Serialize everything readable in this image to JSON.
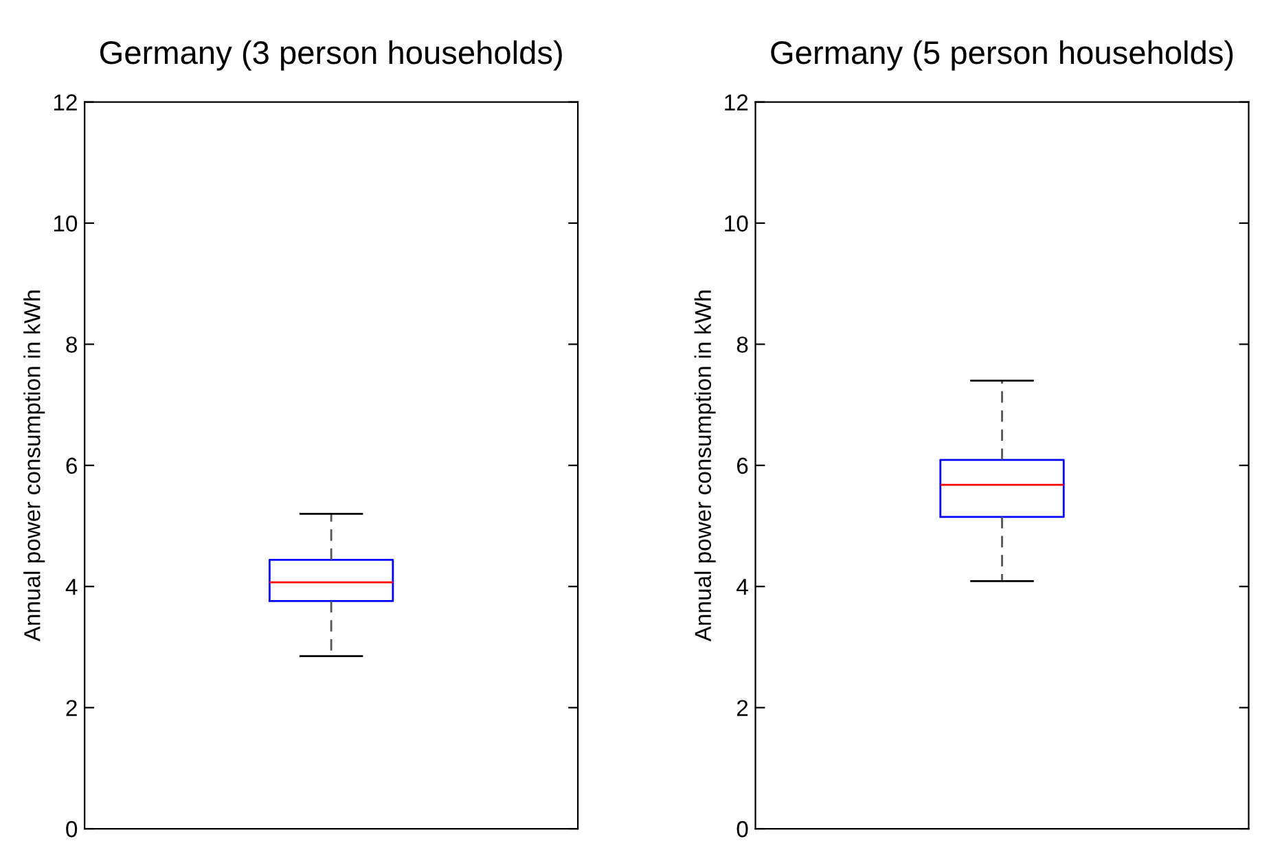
{
  "chart_data": [
    {
      "type": "box",
      "title": "Germany (3 person households)",
      "ylabel": "Annual power consumption in kWh",
      "categories": [
        null
      ],
      "boxes": [
        {
          "low": 2.85,
          "q1": 3.76,
          "median": 4.07,
          "q3": 4.44,
          "high": 5.2
        }
      ],
      "color": "#0000ff",
      "ylim": [
        0,
        12
      ],
      "yticks": [
        0,
        2,
        4,
        6,
        8,
        10,
        12
      ],
      "grid": false
    },
    {
      "type": "box",
      "title": "Germany (5 person households)",
      "ylabel": "Annual power consumption in kWh",
      "categories": [
        null
      ],
      "boxes": [
        {
          "low": 4.09,
          "q1": 5.15,
          "median": 5.68,
          "q3": 6.09,
          "high": 7.4
        }
      ],
      "color": "#0000ff",
      "ylim": [
        0,
        12
      ],
      "yticks": [
        0,
        2,
        4,
        6,
        8,
        10,
        12
      ],
      "grid": false
    }
  ]
}
